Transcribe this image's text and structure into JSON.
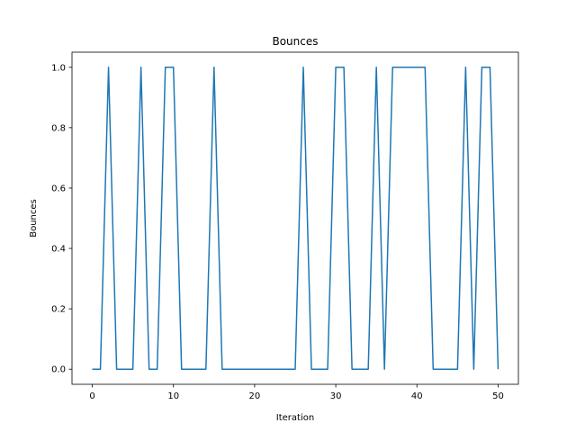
{
  "chart_data": {
    "type": "line",
    "title": "Bounces",
    "xlabel": "Iteration",
    "ylabel": "Bounces",
    "xlim": [
      -2.5,
      52.5
    ],
    "ylim": [
      -0.05,
      1.05
    ],
    "xticks": [
      0,
      10,
      20,
      30,
      40,
      50
    ],
    "yticks": [
      0.0,
      0.2,
      0.4,
      0.6,
      0.8,
      1.0
    ],
    "xtick_labels": [
      "0",
      "10",
      "20",
      "30",
      "40",
      "50"
    ],
    "ytick_labels": [
      "0.0",
      "0.2",
      "0.4",
      "0.6",
      "0.8",
      "1.0"
    ],
    "grid": false,
    "series": [
      {
        "color": "#1f77b4",
        "x": [
          0,
          1,
          2,
          3,
          4,
          5,
          6,
          7,
          8,
          9,
          10,
          11,
          12,
          13,
          14,
          15,
          16,
          17,
          18,
          19,
          20,
          21,
          22,
          23,
          24,
          25,
          26,
          27,
          28,
          29,
          30,
          31,
          32,
          33,
          34,
          35,
          36,
          37,
          38,
          39,
          40,
          41,
          42,
          43,
          44,
          45,
          46,
          47,
          48,
          49,
          50
        ],
        "y": [
          0,
          0,
          1,
          0,
          0,
          0,
          1,
          0,
          0,
          1,
          1,
          0,
          0,
          0,
          0,
          1,
          0,
          0,
          0,
          0,
          0,
          0,
          0,
          0,
          0,
          0,
          1,
          0,
          0,
          0,
          1,
          1,
          0,
          0,
          0,
          1,
          0,
          1,
          1,
          1,
          1,
          1,
          0,
          0,
          0,
          0,
          1,
          0,
          1,
          1,
          0
        ]
      }
    ]
  }
}
